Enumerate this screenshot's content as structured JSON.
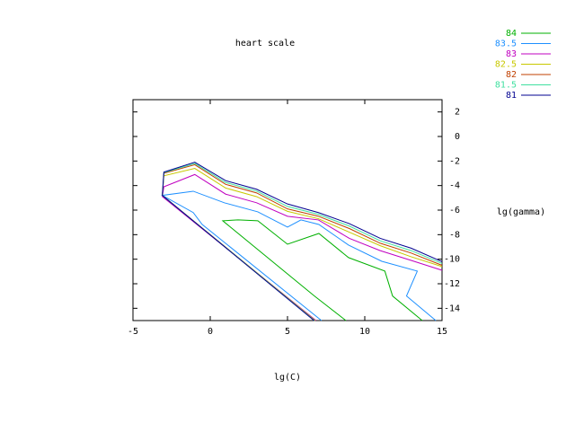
{
  "chart_data": {
    "type": "line",
    "title": "heart scale",
    "x_label": "lg(C)",
    "y_label": "lg(gamma)",
    "xlim": [
      -5,
      15
    ],
    "ylim": [
      -15,
      3
    ],
    "xticks": [
      -5,
      0,
      5,
      10,
      15
    ],
    "yticks": [
      2,
      0,
      -2,
      -4,
      -6,
      -8,
      -10,
      -12,
      -14
    ],
    "legend": "top-right",
    "series": [
      {
        "name": "84",
        "color": "#00b000",
        "x": [
          8.78,
          6.74,
          0.81,
          1.8,
          3.08,
          5,
          7.03,
          8.95,
          11.3,
          11.8,
          13.72
        ],
        "values": [
          -15,
          -13,
          -6.87,
          -6.8,
          -6.87,
          -8.78,
          -7.9,
          -9.87,
          -10.97,
          -13,
          -15
        ]
      },
      {
        "name": "83.5",
        "color": "#1e90ff",
        "x": [
          7.2,
          -0.52,
          -1.1,
          -3.1,
          -1.1,
          0.93,
          3.08,
          5,
          5.87,
          7.03,
          8.95,
          11.1,
          13.4,
          12.7,
          14.6
        ],
        "values": [
          -15,
          -7.17,
          -6.2,
          -4.8,
          -4.46,
          -5.41,
          -6.14,
          -7.39,
          -6.8,
          -7.17,
          -8.85,
          -10.17,
          -10.97,
          -13,
          -15
        ]
      },
      {
        "name": "83",
        "color": "#c000c0",
        "x": [
          6.85,
          -3.1,
          -3,
          -1,
          1,
          3,
          5,
          7,
          9,
          11,
          13,
          15
        ],
        "values": [
          -15,
          -4.9,
          -4.1,
          -3.1,
          -4.7,
          -5.4,
          -6.5,
          -6.8,
          -8.3,
          -9.3,
          -10.1,
          -10.9
        ]
      },
      {
        "name": "82.5",
        "color": "#c8c800",
        "x": [
          6.8,
          -3.1,
          -3,
          -1,
          1,
          3,
          5,
          7,
          9,
          11,
          13,
          15
        ],
        "values": [
          -15,
          -4.8,
          -3.2,
          -2.6,
          -4.2,
          -4.9,
          -6.1,
          -6.7,
          -7.8,
          -8.9,
          -9.8,
          -10.6
        ]
      },
      {
        "name": "82",
        "color": "#c04000",
        "x": [
          6.77,
          -3.1,
          -3,
          -1,
          1,
          3,
          5,
          7,
          9,
          11,
          13,
          15
        ],
        "values": [
          -15,
          -4.8,
          -3,
          -2.3,
          -3.9,
          -4.6,
          -5.9,
          -6.5,
          -7.5,
          -8.7,
          -9.5,
          -10.5
        ]
      },
      {
        "name": "81.5",
        "color": "#40e0a0",
        "x": [
          6.75,
          -3.1,
          -3,
          -1,
          1,
          3,
          5,
          7,
          9,
          11,
          13,
          15
        ],
        "values": [
          -15,
          -4.8,
          -2.95,
          -2.2,
          -3.75,
          -4.45,
          -5.7,
          -6.35,
          -7.3,
          -8.5,
          -9.3,
          -10.35
        ]
      },
      {
        "name": "81",
        "color": "#000090",
        "x": [
          6.72,
          -3.1,
          -3,
          -1,
          1,
          3,
          5,
          7,
          9,
          11,
          13,
          15
        ],
        "values": [
          -15,
          -4.8,
          -2.9,
          -2.1,
          -3.6,
          -4.3,
          -5.5,
          -6.2,
          -7.1,
          -8.3,
          -9.1,
          -10.2
        ]
      }
    ]
  }
}
